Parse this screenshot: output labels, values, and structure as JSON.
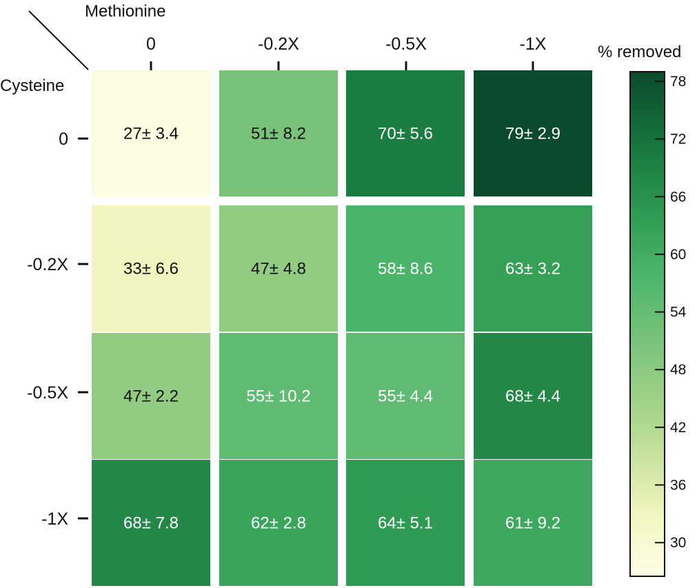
{
  "chart_data": {
    "type": "heatmap",
    "col_title": "Methionine",
    "row_title": "Cysteine",
    "colorbar_title": "% removed",
    "columns": [
      "0",
      "-0.2X",
      "-0.5X",
      "-1X"
    ],
    "rows": [
      "0",
      "-0.2X",
      "-0.5X",
      "-1X"
    ],
    "values": [
      [
        27,
        51,
        70,
        79
      ],
      [
        33,
        47,
        58,
        63
      ],
      [
        47,
        55,
        55,
        68
      ],
      [
        68,
        62,
        64,
        61
      ]
    ],
    "errors": [
      [
        3.4,
        8.2,
        5.6,
        2.9
      ],
      [
        6.6,
        4.8,
        8.6,
        3.2
      ],
      [
        2.2,
        10.2,
        4.4,
        4.4
      ],
      [
        7.8,
        2.8,
        5.1,
        9.2
      ]
    ],
    "labels": [
      [
        "27± 3.4",
        "51± 8.2",
        "70± 5.6",
        "79± 2.9"
      ],
      [
        "33± 6.6",
        "47± 4.8",
        "58± 8.6",
        "63± 3.2"
      ],
      [
        "47± 2.2",
        "55± 10.2",
        "55± 4.4",
        "68± 4.4"
      ],
      [
        "68± 7.8",
        "62± 2.8",
        "64± 5.1",
        "61± 9.2"
      ]
    ],
    "colorbar_ticks": [
      "30",
      "36",
      "42",
      "48",
      "54",
      "60",
      "66",
      "72",
      "78"
    ],
    "colorbar_range": [
      26.5,
      79
    ],
    "colorscale": "YlGn",
    "colors": {
      "low": "#fdfde6",
      "high": "#0b4a2c"
    }
  }
}
